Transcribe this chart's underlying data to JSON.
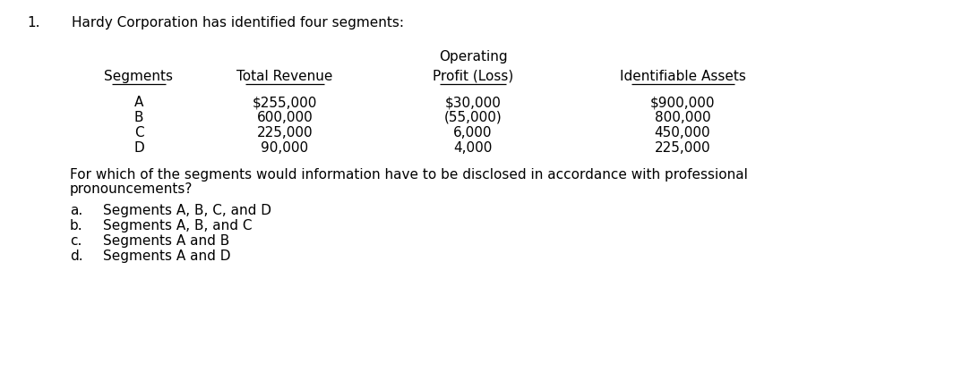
{
  "title_number": "1.",
  "title_text": "Hardy Corporation has identified four segments:",
  "col_headers_operating": "Operating",
  "col_headers": [
    "Segments",
    "Total Revenue",
    "Profit (Loss)",
    "Identifiable Assets"
  ],
  "rows": [
    [
      "A",
      "$255,000",
      "$30,000",
      "$900,000"
    ],
    [
      "B",
      "600,000",
      "(55,000)",
      "800,000"
    ],
    [
      "C",
      "225,000",
      "6,000",
      "450,000"
    ],
    [
      "D",
      "90,000",
      "4,000",
      "225,000"
    ]
  ],
  "question_line1": "For which of the segments would information have to be disclosed in accordance with professional",
  "question_line2": "pronouncements?",
  "choices": [
    [
      "a.",
      "Segments A, B, C, and D"
    ],
    [
      "b.",
      "Segments A, B, and C"
    ],
    [
      "c.",
      "Segments A and B"
    ],
    [
      "d.",
      "Segments A and D"
    ]
  ],
  "background_color": "#ffffff",
  "text_color": "#000000",
  "font_size": 11.0,
  "fig_width": 10.74,
  "fig_height": 4.16,
  "dpi": 100
}
